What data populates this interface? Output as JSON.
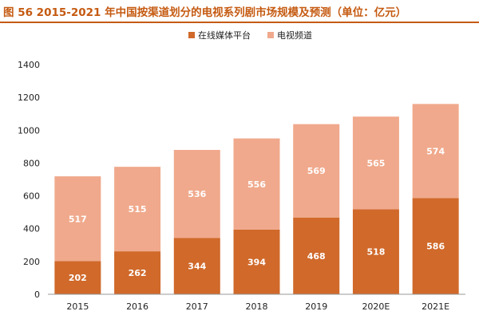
{
  "chart_data": {
    "type": "bar",
    "stacked": true,
    "title": "图 56 2015-2021 年中国按渠道划分的电视系列剧市场规模及预测（单位：亿元）",
    "categories": [
      "2015",
      "2016",
      "2017",
      "2018",
      "2019",
      "2020E",
      "2021E"
    ],
    "series": [
      {
        "name": "在线媒体平台",
        "color": "#d0692a",
        "values": [
          202,
          262,
          344,
          394,
          468,
          518,
          586
        ]
      },
      {
        "name": "电视频道",
        "color": "#f0a98c",
        "values": [
          517,
          515,
          536,
          556,
          569,
          565,
          574
        ]
      }
    ],
    "ylim": [
      0,
      1400
    ],
    "yticks": [
      0,
      200,
      400,
      600,
      800,
      1000,
      1200,
      1400
    ],
    "grid": false,
    "legend": "top-center"
  }
}
